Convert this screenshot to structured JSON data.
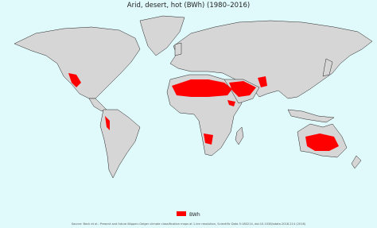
{
  "title": "Arid, desert, hot (BWh) (1980–2016)",
  "legend": {
    "label": "BWh",
    "color": "#ff0000"
  },
  "source": "Source: Beck et al.: Present and future Köppen-Geiger climate classification maps at 1-km resolution, Scientific Data 5:180214, doi:10.1038/sdata.2018.214 (2018)"
}
